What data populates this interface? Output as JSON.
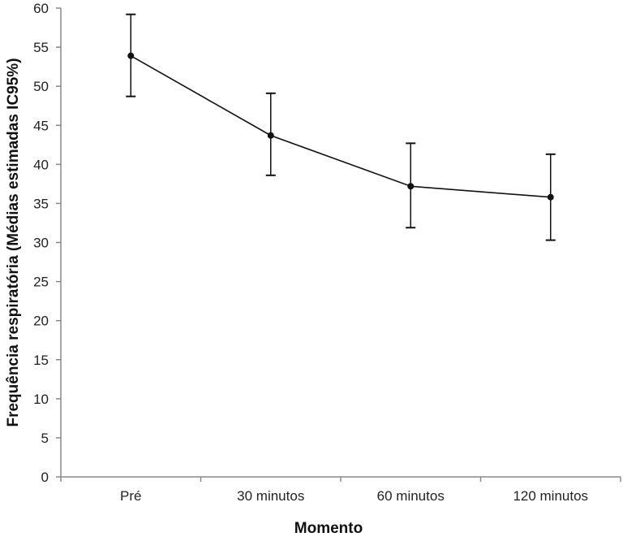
{
  "chart_data": {
    "type": "line",
    "title": "",
    "xlabel": "Momento",
    "ylabel": "Frequência respiratória (Médias estimadas IC95%)",
    "categories": [
      "Pré",
      "30 minutos",
      "60 minutos",
      "120 minutos"
    ],
    "values": [
      53.9,
      43.7,
      37.2,
      35.8
    ],
    "error_low": [
      48.7,
      38.6,
      31.9,
      30.3
    ],
    "error_high": [
      59.2,
      49.1,
      42.7,
      41.3
    ],
    "ylim": [
      0,
      60
    ],
    "yticks": [
      0,
      5,
      10,
      15,
      20,
      25,
      30,
      35,
      40,
      45,
      50,
      55,
      60
    ],
    "grid": false,
    "legend": "none",
    "colors": {
      "line": "#111111",
      "axis": "#888888",
      "text": "#222222"
    }
  }
}
